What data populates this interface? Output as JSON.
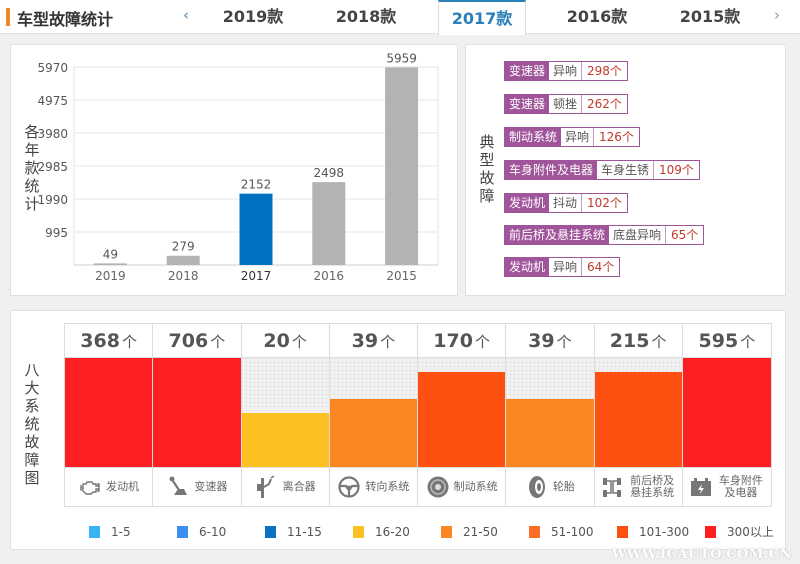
{
  "header": {
    "title": "车型故障统计",
    "prev_icon": "‹",
    "next_icon": "›",
    "tabs": [
      {
        "label": "2019款",
        "active": false
      },
      {
        "label": "2018款",
        "active": false
      },
      {
        "label": "2017款",
        "active": true
      },
      {
        "label": "2016款",
        "active": false
      },
      {
        "label": "2015款",
        "active": false
      }
    ]
  },
  "chart_data": {
    "type": "bar",
    "title": "",
    "ylabel": "各年款统计",
    "xlabel": "",
    "categories": [
      "2019",
      "2018",
      "2017",
      "2016",
      "2015"
    ],
    "values": [
      49,
      279,
      2152,
      2498,
      5959
    ],
    "highlight": "2017",
    "highlight_color": "#0070c0",
    "bar_color": "#b3b3b3",
    "yticks": [
      995,
      1990,
      2985,
      3980,
      4975,
      5970
    ],
    "ylim": [
      0,
      5970
    ],
    "grid": true
  },
  "faults": {
    "label": "典型故障",
    "accent": "#a0559b",
    "items": [
      {
        "category": "变速器",
        "symptom": "异响",
        "count": "298个"
      },
      {
        "category": "变速器",
        "symptom": "顿挫",
        "count": "262个"
      },
      {
        "category": "制动系统",
        "symptom": "异响",
        "count": "126个"
      },
      {
        "category": "车身附件及电器",
        "symptom": "车身生锈",
        "count": "109个"
      },
      {
        "category": "发动机",
        "symptom": "抖动",
        "count": "102个"
      },
      {
        "category": "前后桥及悬挂系统",
        "symptom": "底盘异响",
        "count": "65个"
      },
      {
        "category": "发动机",
        "symptom": "异响",
        "count": "64个"
      }
    ]
  },
  "systems": {
    "label": "八大系统故障图",
    "unit": "个",
    "items": [
      {
        "name": "发动机",
        "count": 368,
        "level": 1.0,
        "color": "#fe1f22",
        "icon": "engine-icon"
      },
      {
        "name": "变速器",
        "count": 706,
        "level": 1.0,
        "color": "#fe1f22",
        "icon": "gear-shifter-icon"
      },
      {
        "name": "离合器",
        "count": 20,
        "level": 0.5,
        "color": "#fcc021",
        "icon": "clutch-pedal-icon"
      },
      {
        "name": "转向系统",
        "count": 39,
        "level": 0.625,
        "color": "#fb8722",
        "icon": "steering-wheel-icon"
      },
      {
        "name": "制动系统",
        "count": 170,
        "level": 0.875,
        "color": "#fe5111",
        "icon": "brake-disc-icon"
      },
      {
        "name": "轮胎",
        "count": 39,
        "level": 0.625,
        "color": "#fb8722",
        "icon": "tire-icon"
      },
      {
        "name": "前后桥及悬挂系统",
        "count": 215,
        "level": 0.875,
        "color": "#fe5111",
        "icon": "suspension-icon"
      },
      {
        "name": "车身附件及电器",
        "count": 595,
        "level": 1.0,
        "color": "#fe1f22",
        "icon": "battery-icon"
      }
    ],
    "legend": [
      {
        "label": "1-5",
        "color": "#36b4f5"
      },
      {
        "label": "6-10",
        "color": "#3a8ff0"
      },
      {
        "label": "11-15",
        "color": "#0a72c2"
      },
      {
        "label": "16-20",
        "color": "#fcc021"
      },
      {
        "label": "21-50",
        "color": "#fb8722"
      },
      {
        "label": "51-100",
        "color": "#fb6c24"
      },
      {
        "label": "101-300",
        "color": "#fe5111"
      },
      {
        "label": "300以上",
        "color": "#fe1f22"
      }
    ]
  },
  "watermark": "WWW.ICAUTO.COM.CN"
}
